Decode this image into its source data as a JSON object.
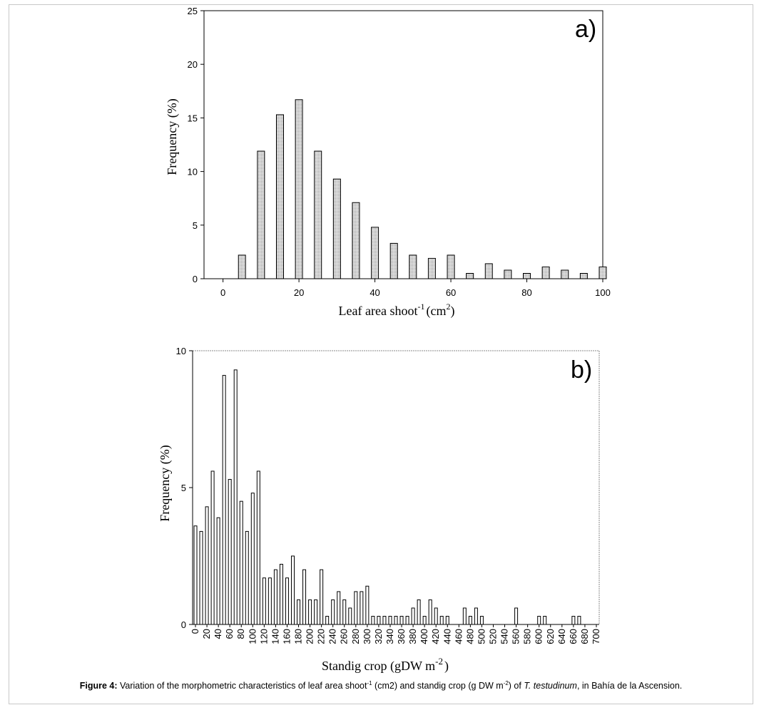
{
  "caption": {
    "label": "Figure 4:",
    "text1": " Variation of the morphometric characteristics of leaf area shoot",
    "sup1": "-1",
    "text2": " (cm2) and standig crop (g DW m",
    "sup2": "-2",
    "text3": ") of ",
    "species": "T. testudinum",
    "text4": ", in Bahía de la Ascension."
  },
  "chart_data": [
    {
      "type": "bar",
      "panel_label": "a)",
      "xlabel": "Leaf area shoot",
      "xlabel_sup": "-1",
      "xlabel_unit": "(cm",
      "xlabel_unit_sup": "2",
      "xlabel_close": ")",
      "ylabel": "Frequency (%)",
      "xlim": [
        -5,
        100
      ],
      "ylim": [
        0,
        25
      ],
      "xticks": [
        0,
        20,
        40,
        60,
        80,
        100
      ],
      "yticks": [
        0,
        5,
        10,
        15,
        20,
        25
      ],
      "x": [
        5,
        10,
        15,
        20,
        25,
        30,
        35,
        40,
        45,
        50,
        55,
        60,
        65,
        70,
        75,
        80,
        85,
        90,
        95,
        100
      ],
      "values": [
        2.2,
        11.9,
        15.3,
        16.7,
        11.9,
        9.3,
        7.1,
        4.8,
        3.3,
        2.2,
        1.9,
        2.2,
        0.5,
        1.4,
        0.8,
        0.5,
        1.1,
        0.8,
        0.5,
        1.1
      ],
      "bar_fill": "#d4d4d4"
    },
    {
      "type": "bar",
      "panel_label": "b)",
      "xlabel": "Standig crop (gDW m",
      "xlabel_sup": "-2",
      "xlabel_close": ")",
      "ylabel": "Frequency (%)",
      "ylim": [
        0,
        10
      ],
      "yticks": [
        0,
        5,
        10
      ],
      "categories": [
        "0",
        "10",
        "20",
        "30",
        "40",
        "50",
        "60",
        "70",
        "80",
        "90",
        "100",
        "110",
        "120",
        "130",
        "140",
        "150",
        "160",
        "170",
        "180",
        "190",
        "200",
        "210",
        "220",
        "230",
        "240",
        "250",
        "260",
        "270",
        "280",
        "290",
        "300",
        "310",
        "320",
        "330",
        "340",
        "350",
        "360",
        "370",
        "380",
        "390",
        "400",
        "410",
        "420",
        "430",
        "440",
        "450",
        "460",
        "470",
        "480",
        "490",
        "500",
        "510",
        "520",
        "530",
        "540",
        "550",
        "560",
        "570",
        "580",
        "590",
        "600",
        "610",
        "620",
        "630",
        "640",
        "650",
        "660",
        "670",
        "680",
        "690",
        "700"
      ],
      "tick_labels": [
        "0",
        "20",
        "40",
        "60",
        "80",
        "100",
        "120",
        "140",
        "160",
        "180",
        "200",
        "220",
        "240",
        "260",
        "280",
        "300",
        "320",
        "340",
        "360",
        "380",
        "400",
        "420",
        "440",
        "460",
        "480",
        "500",
        "520",
        "540",
        "560",
        "580",
        "600",
        "620",
        "640",
        "660",
        "680",
        "700"
      ],
      "values": [
        3.6,
        3.4,
        4.3,
        5.6,
        3.9,
        9.1,
        5.3,
        9.3,
        4.5,
        3.4,
        4.8,
        5.6,
        1.7,
        1.7,
        2.0,
        2.2,
        1.7,
        2.5,
        0.9,
        2.0,
        0.9,
        0.9,
        2.0,
        0.3,
        0.9,
        1.2,
        0.9,
        0.6,
        1.2,
        1.2,
        1.4,
        0.3,
        0.3,
        0.3,
        0.3,
        0.3,
        0.3,
        0.3,
        0.6,
        0.9,
        0.3,
        0.9,
        0.6,
        0.3,
        0.3,
        0,
        0,
        0.6,
        0.3,
        0.6,
        0.3,
        0,
        0,
        0,
        0,
        0,
        0.6,
        0,
        0,
        0,
        0.3,
        0.3,
        0,
        0,
        0,
        0,
        0.3,
        0.3,
        0,
        0,
        0
      ],
      "bar_fill": "#ffffff"
    }
  ]
}
